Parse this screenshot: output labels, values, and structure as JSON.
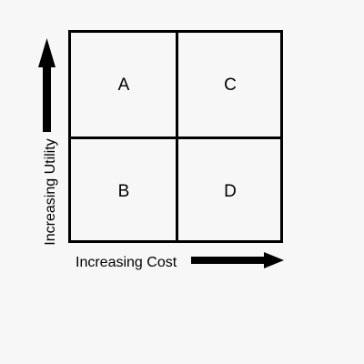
{
  "diagram": {
    "quadrants": {
      "top_left": "A",
      "top_right": "C",
      "bottom_left": "B",
      "bottom_right": "D"
    },
    "x_axis_label": "Increasing Cost",
    "y_axis_label": "Increasing Utility"
  },
  "colors": {
    "background": "#f7f7f7",
    "ink": "#000000"
  }
}
